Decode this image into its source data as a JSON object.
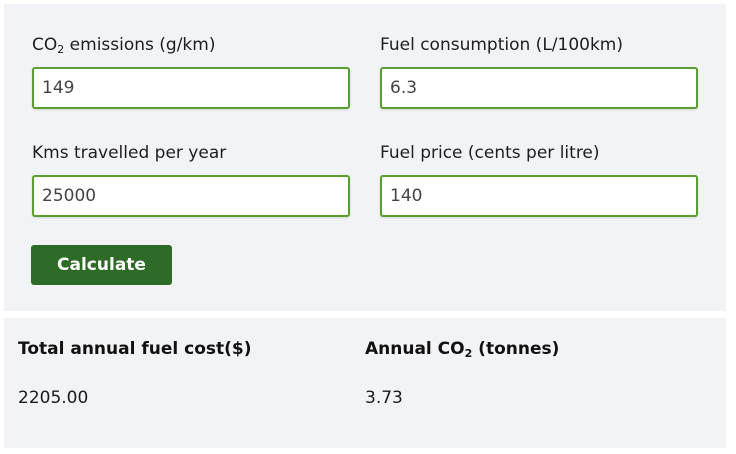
{
  "form": {
    "co2": {
      "label_prefix": "CO",
      "label_sub": "2",
      "label_suffix": " emissions (g/km)",
      "value": "149"
    },
    "fuel_consumption": {
      "label": "Fuel consumption (L/100km)",
      "value": "6.3"
    },
    "kms": {
      "label": "Kms travelled per year",
      "value": "25000"
    },
    "fuel_price": {
      "label": "Fuel price (cents per litre)",
      "value": "140"
    },
    "calculate_label": "Calculate"
  },
  "results": {
    "cost_heading": "Total annual fuel cost($)",
    "cost_value": "2205.00",
    "co2_heading_prefix": "Annual CO",
    "co2_heading_sub": "2",
    "co2_heading_suffix": " (tonnes)",
    "co2_value": "3.73"
  },
  "colors": {
    "accent_border": "#5a9e2f",
    "button_bg": "#2e6b26",
    "panel_bg": "#f1f3f6"
  }
}
